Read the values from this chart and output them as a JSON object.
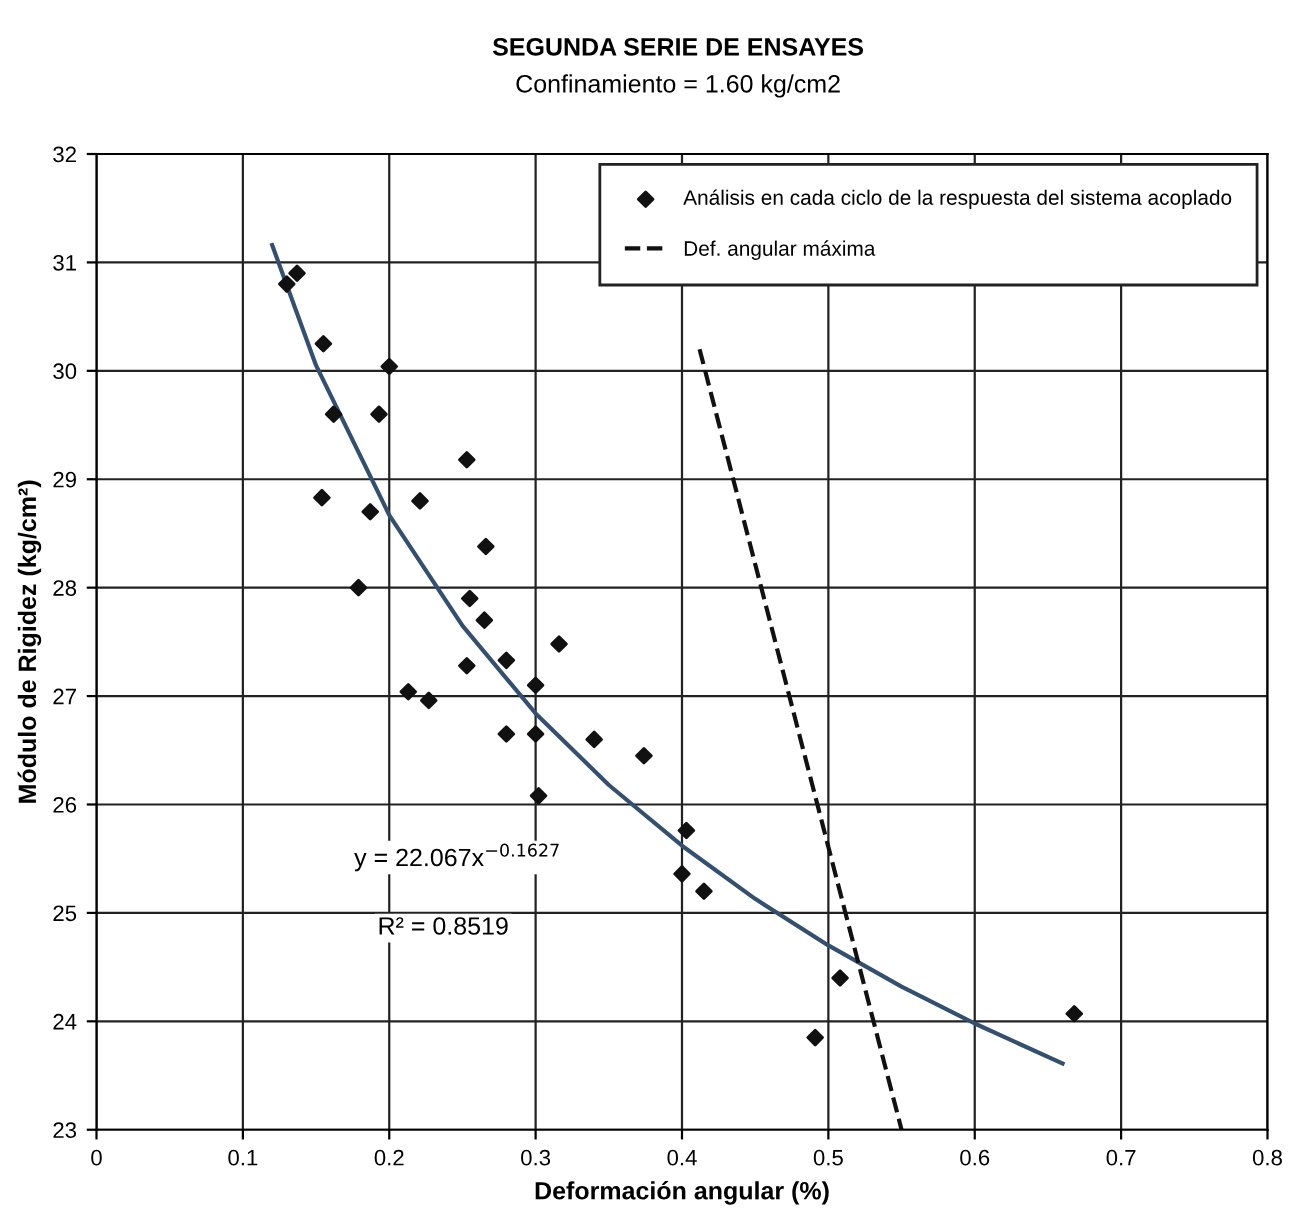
{
  "chart_data": {
    "type": "scatter",
    "title": "SEGUNDA SERIE DE ENSAYES",
    "subtitle": "Confinamiento = 1.60 kg/cm2",
    "xlabel": "Deformación angular (%)",
    "ylabel": "Módulo de Rigidez (kg/cm²)",
    "annotations": [
      "y = 22.067x$^{−0.1627}$",
      "R² = 0.8519"
    ],
    "series": [
      {
        "name": "Análisis en cada ciclo de la respuesta del sistema acoplado",
        "color": "#111111",
        "marker": "diamond",
        "x": [
          0.13,
          0.137,
          0.155,
          0.2,
          0.162,
          0.193,
          0.253,
          0.154,
          0.187,
          0.221,
          0.266,
          0.179,
          0.255,
          0.265,
          0.316,
          0.253,
          0.28,
          0.3,
          0.213,
          0.227,
          0.28,
          0.3,
          0.34,
          0.374,
          0.302,
          0.403,
          0.4,
          0.415,
          0.508,
          0.491,
          0.668
        ],
        "values": [
          30.8,
          30.9,
          30.25,
          30.04,
          29.6,
          29.6,
          29.18,
          28.83,
          28.7,
          28.8,
          28.38,
          28.0,
          27.9,
          27.7,
          27.48,
          27.28,
          27.33,
          27.1,
          27.04,
          26.96,
          26.65,
          26.65,
          26.6,
          26.45,
          26.08,
          25.76,
          25.36,
          25.2,
          24.4,
          23.85,
          24.07
        ]
      },
      {
        "type": "line",
        "color": "#34506e",
        "line_style": "solid",
        "x": [
          0.12,
          0.15,
          0.2,
          0.25,
          0.3,
          0.35,
          0.4,
          0.45,
          0.5,
          0.55,
          0.6,
          0.66
        ],
        "values": [
          31.16,
          30.05,
          28.67,
          27.65,
          26.84,
          26.18,
          25.62,
          25.13,
          24.7,
          24.32,
          23.98,
          23.61
        ]
      },
      {
        "name": "Def. angular máxima",
        "type": "line",
        "color": "#111111",
        "line_style": "dashed",
        "x": [
          0.412,
          0.55
        ],
        "values": [
          30.2,
          23.0
        ]
      }
    ],
    "xlim": [
      0,
      0.8
    ],
    "ylim": [
      23,
      32
    ],
    "xticks": [
      0,
      0.1,
      0.2,
      0.3,
      0.4,
      0.5,
      0.6,
      0.7,
      0.8
    ],
    "yticks": [
      23,
      24,
      25,
      26,
      27,
      28,
      29,
      30,
      31,
      32
    ],
    "grid": true,
    "legend": "top right"
  }
}
